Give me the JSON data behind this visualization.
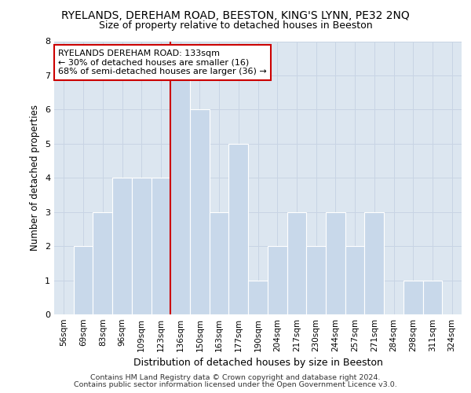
{
  "title1": "RYELANDS, DEREHAM ROAD, BEESTON, KING'S LYNN, PE32 2NQ",
  "title2": "Size of property relative to detached houses in Beeston",
  "xlabel": "Distribution of detached houses by size in Beeston",
  "ylabel": "Number of detached properties",
  "footer1": "Contains HM Land Registry data © Crown copyright and database right 2024.",
  "footer2": "Contains public sector information licensed under the Open Government Licence v3.0.",
  "annotation_title": "RYELANDS DEREHAM ROAD: 133sqm",
  "annotation_line1": "← 30% of detached houses are smaller (16)",
  "annotation_line2": "68% of semi-detached houses are larger (36) →",
  "bar_categories": [
    "56sqm",
    "69sqm",
    "83sqm",
    "96sqm",
    "109sqm",
    "123sqm",
    "136sqm",
    "150sqm",
    "163sqm",
    "177sqm",
    "190sqm",
    "204sqm",
    "217sqm",
    "230sqm",
    "244sqm",
    "257sqm",
    "271sqm",
    "284sqm",
    "298sqm",
    "311sqm",
    "324sqm"
  ],
  "bar_values": [
    0,
    2,
    3,
    4,
    4,
    4,
    7,
    6,
    3,
    5,
    1,
    2,
    3,
    2,
    3,
    2,
    3,
    0,
    1,
    1,
    0
  ],
  "bar_color": "#c8d8ea",
  "bar_edge_color": "#ffffff",
  "vline_color": "#cc0000",
  "vline_x_index": 6,
  "grid_color": "#c8d4e4",
  "axes_bg_color": "#dce6f0",
  "fig_bg_color": "#ffffff",
  "annotation_box_edge": "#cc0000",
  "ylim": [
    0,
    8
  ],
  "yticks": [
    0,
    1,
    2,
    3,
    4,
    5,
    6,
    7,
    8
  ],
  "title1_fontsize": 10,
  "title2_fontsize": 9,
  "ylabel_fontsize": 8.5,
  "xlabel_fontsize": 9,
  "tick_fontsize": 8,
  "footer_fontsize": 6.8,
  "ann_fontsize": 8
}
